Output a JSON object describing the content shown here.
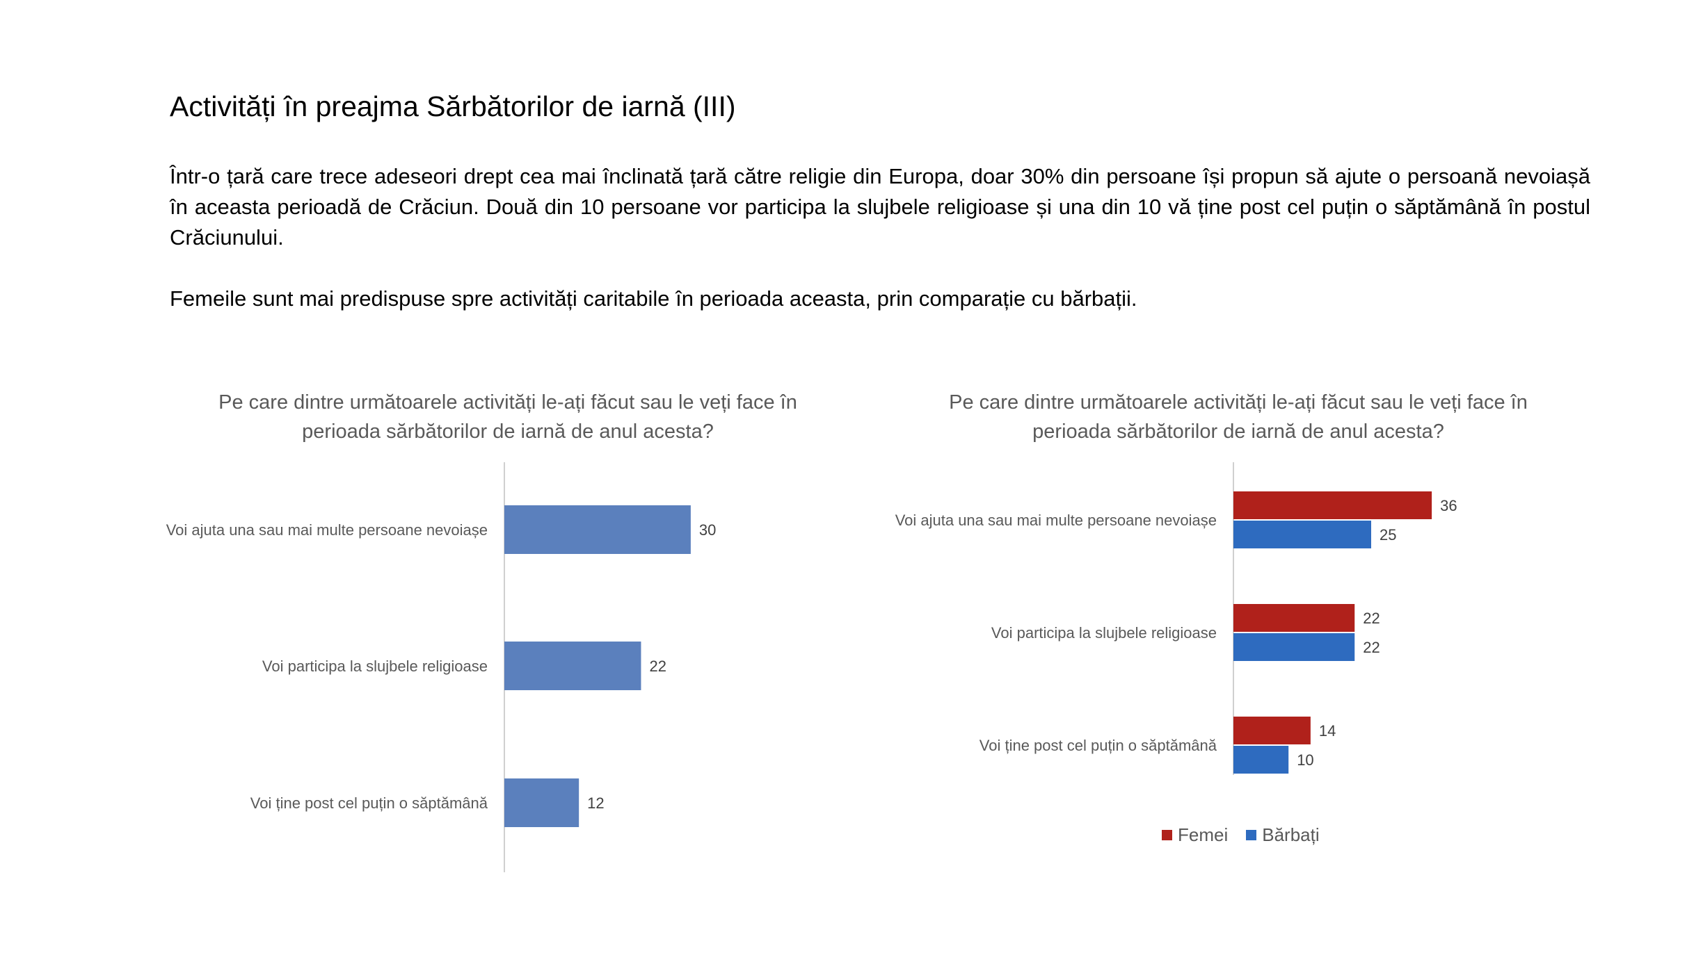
{
  "slide": {
    "title": "Activități în preajma Sărbătorilor de iarnă (III)",
    "intro": "Într-o țară care trece adeseori drept cea mai înclinată țară către religie din Europa, doar 30% din persoane își propun să ajute o persoană nevoiașă în aceasta perioadă de Crăciun. Două din 10 persoane vor participa la slujbele religioase și una din 10 vă ține post cel puțin o săptămână în postul Crăciunului.",
    "intro2": "Femeile sunt mai predispuse spre activități caritabile în perioada aceasta, prin comparație cu bărbații."
  },
  "chart_data": [
    {
      "type": "bar",
      "orientation": "horizontal",
      "title": "Pe care dintre următoarele activități le-ați făcut sau le veți face în perioada sărbătorilor de iarnă de anul acesta?",
      "categories": [
        "Voi ajuta una sau mai multe persoane nevoiașe",
        "Voi participa la slujbele religioase",
        "Voi ține post cel puțin o săptămână"
      ],
      "series": [
        {
          "values": [
            30,
            22,
            12
          ],
          "color": "#5B80BD"
        }
      ],
      "data_labels": true,
      "grid": false,
      "legend": "none",
      "xlim": [
        0,
        40
      ]
    },
    {
      "type": "bar",
      "orientation": "horizontal",
      "title": "Pe care dintre următoarele activități le-ați făcut sau le veți face în perioada sărbătorilor de iarnă de anul acesta?",
      "categories": [
        "Voi ajuta una sau mai multe persoane nevoiașe",
        "Voi participa la slujbele religioase",
        "Voi ține post cel puțin o săptămână"
      ],
      "series": [
        {
          "name": "Femei",
          "values": [
            36,
            22,
            14
          ],
          "color": "#B0211B"
        },
        {
          "name": "Bărbați",
          "values": [
            25,
            22,
            10
          ],
          "color": "#2E6BBF"
        }
      ],
      "data_labels": true,
      "grid": false,
      "legend": "bottom",
      "xlim": [
        0,
        40
      ]
    }
  ]
}
